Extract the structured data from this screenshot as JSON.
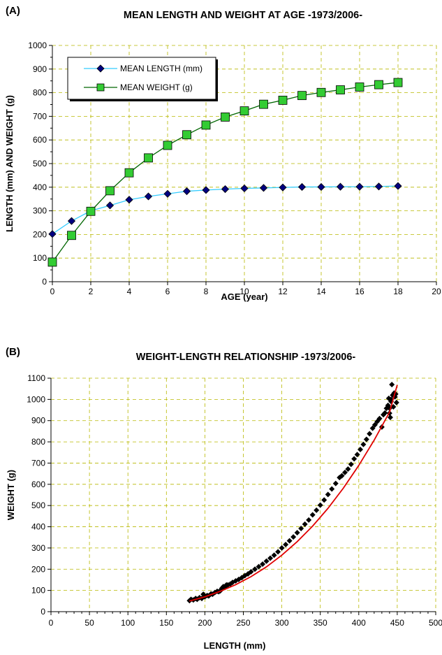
{
  "chart_data": [
    {
      "panel_label": "(A)",
      "type": "line",
      "title": "MEAN LENGTH AND WEIGHT AT AGE  -1973/2006-",
      "xlabel": "AGE (year)",
      "ylabel": "LENGTH (mm) AND WEIGHT (g)",
      "xlim": [
        0,
        20
      ],
      "ylim": [
        0,
        1000
      ],
      "x_ticks": [
        0,
        2,
        4,
        6,
        8,
        10,
        12,
        14,
        16,
        18,
        20
      ],
      "y_ticks": [
        0,
        100,
        200,
        300,
        400,
        500,
        600,
        700,
        800,
        900,
        1000
      ],
      "grid": true,
      "legend_position": "top-left",
      "x": [
        0,
        1,
        2,
        3,
        4,
        5,
        6,
        7,
        8,
        9,
        10,
        11,
        12,
        13,
        14,
        15,
        16,
        17,
        18
      ],
      "series": [
        {
          "name": "MEAN LENGTH (mm)",
          "marker": "diamond",
          "line_color": "#33ccff",
          "marker_color": "#000080",
          "values": [
            202,
            257,
            300,
            323,
            347,
            361,
            372,
            383,
            388,
            392,
            395,
            397,
            399,
            401,
            401,
            402,
            402,
            403,
            405
          ]
        },
        {
          "name": "MEAN WEIGHT (g)",
          "marker": "square",
          "line_color": "#006600",
          "marker_color": "#33cc33",
          "values": [
            83,
            196,
            298,
            385,
            461,
            524,
            577,
            622,
            663,
            697,
            723,
            751,
            768,
            788,
            801,
            812,
            824,
            834,
            843
          ]
        }
      ]
    },
    {
      "panel_label": "(B)",
      "type": "scatter",
      "title": "WEIGHT-LENGTH RELATIONSHIP  -1973/2006-",
      "xlabel": "LENGTH (mm)",
      "ylabel": "WEIGHT (g)",
      "xlim": [
        0,
        500
      ],
      "ylim": [
        0,
        1100
      ],
      "x_ticks": [
        0,
        50,
        100,
        150,
        200,
        250,
        300,
        350,
        400,
        450,
        500
      ],
      "y_ticks": [
        0,
        100,
        200,
        300,
        400,
        500,
        600,
        700,
        800,
        900,
        1000,
        1100
      ],
      "grid": true,
      "point_color": "#000000",
      "trendline_color": "#e00000",
      "points": [
        [
          180,
          52
        ],
        [
          182,
          58
        ],
        [
          185,
          55
        ],
        [
          188,
          62
        ],
        [
          190,
          58
        ],
        [
          193,
          66
        ],
        [
          196,
          62
        ],
        [
          198,
          82
        ],
        [
          200,
          70
        ],
        [
          203,
          76
        ],
        [
          205,
          74
        ],
        [
          208,
          84
        ],
        [
          210,
          82
        ],
        [
          213,
          90
        ],
        [
          216,
          96
        ],
        [
          218,
          94
        ],
        [
          220,
          98
        ],
        [
          222,
          110
        ],
        [
          224,
          118
        ],
        [
          226,
          114
        ],
        [
          228,
          126
        ],
        [
          230,
          126
        ],
        [
          233,
          130
        ],
        [
          236,
          138
        ],
        [
          240,
          145
        ],
        [
          244,
          152
        ],
        [
          248,
          160
        ],
        [
          252,
          170
        ],
        [
          256,
          178
        ],
        [
          260,
          188
        ],
        [
          265,
          200
        ],
        [
          270,
          212
        ],
        [
          275,
          224
        ],
        [
          280,
          238
        ],
        [
          285,
          252
        ],
        [
          290,
          266
        ],
        [
          295,
          282
        ],
        [
          300,
          300
        ],
        [
          305,
          316
        ],
        [
          310,
          334
        ],
        [
          315,
          352
        ],
        [
          320,
          372
        ],
        [
          325,
          392
        ],
        [
          330,
          412
        ],
        [
          335,
          432
        ],
        [
          340,
          456
        ],
        [
          345,
          478
        ],
        [
          350,
          502
        ],
        [
          355,
          526
        ],
        [
          360,
          552
        ],
        [
          365,
          578
        ],
        [
          370,
          604
        ],
        [
          375,
          632
        ],
        [
          378,
          640
        ],
        [
          382,
          656
        ],
        [
          386,
          672
        ],
        [
          390,
          694
        ],
        [
          394,
          720
        ],
        [
          398,
          740
        ],
        [
          402,
          764
        ],
        [
          406,
          788
        ],
        [
          410,
          812
        ],
        [
          414,
          838
        ],
        [
          418,
          864
        ],
        [
          421,
          880
        ],
        [
          424,
          896
        ],
        [
          427,
          910
        ],
        [
          430,
          870
        ],
        [
          432,
          928
        ],
        [
          434,
          936
        ],
        [
          436,
          958
        ],
        [
          438,
          972
        ],
        [
          440,
          958
        ],
        [
          440,
          935
        ],
        [
          441,
          915
        ],
        [
          442,
          990
        ],
        [
          442,
          1000
        ],
        [
          443,
          1070
        ],
        [
          444,
          1020
        ],
        [
          445,
          965
        ],
        [
          446,
          1030
        ],
        [
          447,
          1012
        ],
        [
          448,
          1025
        ],
        [
          449,
          985
        ],
        [
          439,
          1005
        ]
      ],
      "trendline": {
        "x": [
          180,
          200,
          220,
          240,
          260,
          280,
          300,
          320,
          340,
          360,
          380,
          400,
          420,
          440,
          450
        ],
        "y": [
          50,
          70,
          96,
          127,
          165,
          211,
          266,
          330,
          403,
          487,
          582,
          689,
          808,
          940,
          1068
        ]
      }
    }
  ]
}
